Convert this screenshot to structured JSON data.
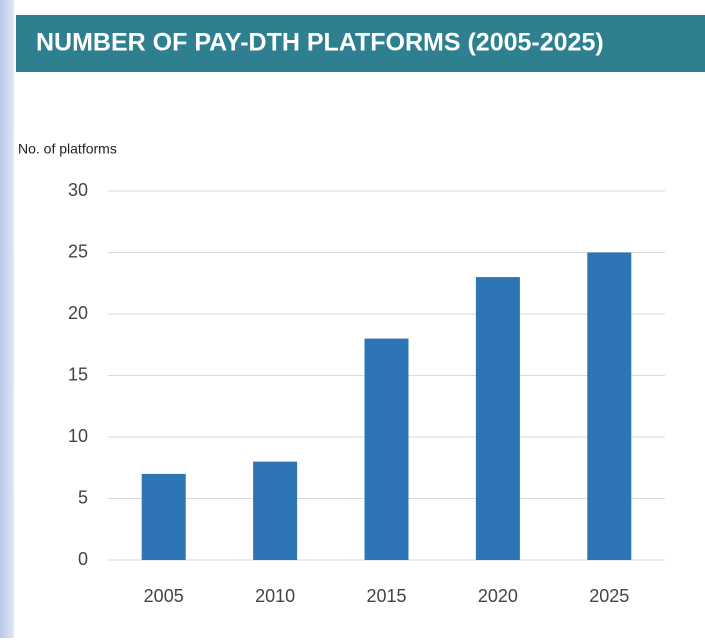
{
  "chart_data": {
    "type": "bar",
    "title": "NUMBER OF PAY-DTH PLATFORMS (2005-2025)",
    "y_label": "No. of platforms",
    "categories": [
      "2005",
      "2010",
      "2015",
      "2020",
      "2025"
    ],
    "values": [
      7,
      8,
      18,
      23,
      25
    ],
    "color": "#2e75b6",
    "ylim": [
      0,
      30
    ],
    "yticks": [
      0,
      5,
      10,
      15,
      20,
      25,
      30
    ],
    "grid": true
  }
}
